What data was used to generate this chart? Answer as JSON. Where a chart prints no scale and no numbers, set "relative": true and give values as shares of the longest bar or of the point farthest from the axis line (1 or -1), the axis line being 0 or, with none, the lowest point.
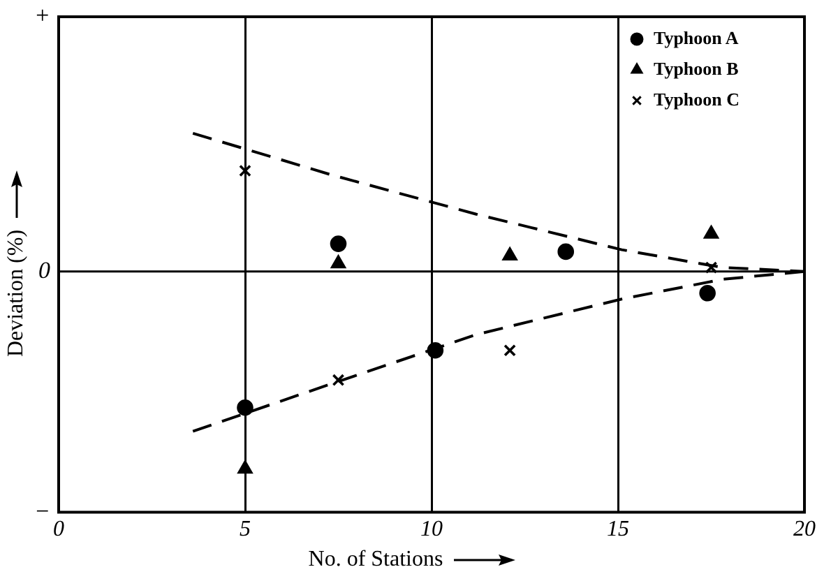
{
  "chart_data": {
    "type": "scatter",
    "relative": true,
    "xlabel": "No. of Stations",
    "ylabel": "Deviation (%)",
    "xlim": [
      0,
      20
    ],
    "xticks": [
      0,
      5,
      10,
      15,
      20
    ],
    "grid": "x",
    "legend": "top right",
    "annotations": [
      "+",
      "0",
      "−"
    ],
    "series": [
      {
        "name": "Typhoon A",
        "color": "#000000",
        "marker": "circle",
        "x": [
          5,
          7.5,
          10.1,
          13.6,
          17.4
        ],
        "values": [
          -0.69,
          0.14,
          -0.4,
          0.1,
          -0.11
        ]
      },
      {
        "name": "Typhoon B",
        "color": "#000000",
        "marker": "triangle",
        "x": [
          5,
          7.5,
          12.1,
          17.5
        ],
        "values": [
          -1,
          0.04,
          0.08,
          0.19
        ]
      },
      {
        "name": "Typhoon C",
        "color": "#000000",
        "marker": "cross",
        "x": [
          5,
          7.5,
          12.1,
          17.5
        ],
        "values": [
          0.51,
          -0.55,
          -0.4,
          0.02
        ]
      },
      {
        "type": "line",
        "color": "#000000",
        "marker": "none",
        "line_style": "dashed",
        "x": [
          3.6,
          7.3,
          11.2,
          15.1,
          17.8,
          20
        ],
        "values": [
          0.7,
          0.49,
          0.29,
          0.11,
          0.02,
          0
        ]
      },
      {
        "type": "line",
        "color": "#000000",
        "marker": "none",
        "line_style": "dashed",
        "x": [
          3.6,
          7.3,
          11.2,
          15.1,
          17.8,
          20
        ],
        "values": [
          -0.81,
          -0.57,
          -0.32,
          -0.14,
          -0.04,
          0
        ]
      }
    ]
  }
}
